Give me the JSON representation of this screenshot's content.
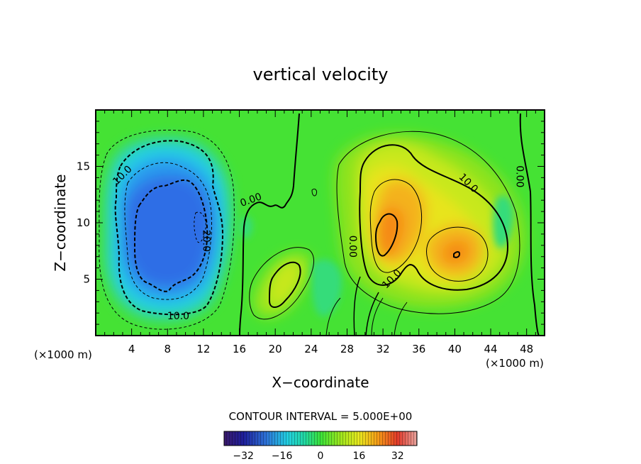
{
  "chart_data": {
    "type": "heatmap",
    "title": "vertical velocity",
    "xlabel": "X−coordinate",
    "ylabel": "Z−coordinate",
    "x_unit": "(×1000 m)",
    "y_unit": "(×1000 m)",
    "xlim": [
      0,
      50
    ],
    "ylim": [
      0,
      20
    ],
    "x_ticks": [
      "4",
      "8",
      "12",
      "16",
      "20",
      "24",
      "28",
      "32",
      "36",
      "40",
      "44",
      "48"
    ],
    "y_ticks": [
      "5",
      "10",
      "15"
    ],
    "contour_interval_text": "CONTOUR INTERVAL = 5.000E+00",
    "colorbar": {
      "range": [
        -40,
        40
      ],
      "ticks": [
        "−32",
        "−16",
        "0",
        "16",
        "32"
      ]
    },
    "contour_labels": [
      {
        "text": "10.0",
        "x": 3,
        "z": 14.2
      },
      {
        "text": "20.0",
        "x": 12.3,
        "z": 8.4
      },
      {
        "text": "10.0",
        "x": 9.2,
        "z": 1.7
      },
      {
        "text": "0.00",
        "x": 17.3,
        "z": 12
      },
      {
        "text": "0.00",
        "x": 28.6,
        "z": 7.9
      },
      {
        "text": "10.0",
        "x": 33,
        "z": 5
      },
      {
        "text": "10.0",
        "x": 41.5,
        "z": 13.5
      },
      {
        "text": "0.00",
        "x": 47.2,
        "z": 14.1
      }
    ],
    "extrema": [
      {
        "x": 8,
        "z": 8.5,
        "value": -25,
        "kind": "updraft_min"
      },
      {
        "x": 33,
        "z": 9.3,
        "value": 20,
        "kind": "max"
      },
      {
        "x": 40.3,
        "z": 7.1,
        "value": 18,
        "kind": "max"
      }
    ]
  }
}
